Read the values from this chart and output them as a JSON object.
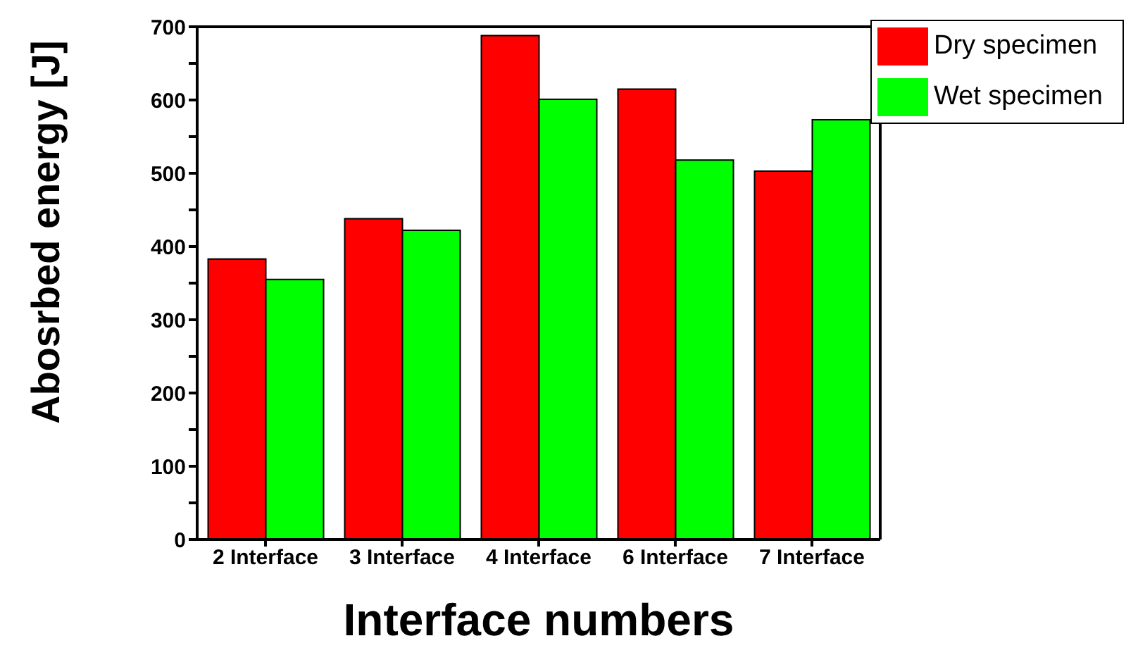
{
  "chart_data": {
    "type": "bar",
    "xlabel": "Interface numbers",
    "ylabel": "Abosrbed energy [J]",
    "categories": [
      "2 Interface",
      "3 Interface",
      "4 Interface",
      "6 Interface",
      "7 Interface"
    ],
    "series": [
      {
        "name": "Dry specimen",
        "color": "#ff0000",
        "values": [
          383,
          438,
          688,
          615,
          503
        ]
      },
      {
        "name": "Wet specimen",
        "color": "#00ff00",
        "values": [
          355,
          422,
          601,
          518,
          573
        ]
      }
    ],
    "ylim": [
      0,
      700
    ],
    "yticks": [
      0,
      {
        "value": 50,
        "label": null
      },
      100,
      {
        "value": 150,
        "label": null
      },
      200,
      {
        "value": 250,
        "label": null
      },
      300,
      {
        "value": 350,
        "label": null
      },
      400,
      {
        "value": 450,
        "label": null
      },
      500,
      {
        "value": 550,
        "label": null
      },
      600,
      {
        "value": 650,
        "label": null
      },
      700
    ],
    "grid": false,
    "legend": "top right"
  }
}
